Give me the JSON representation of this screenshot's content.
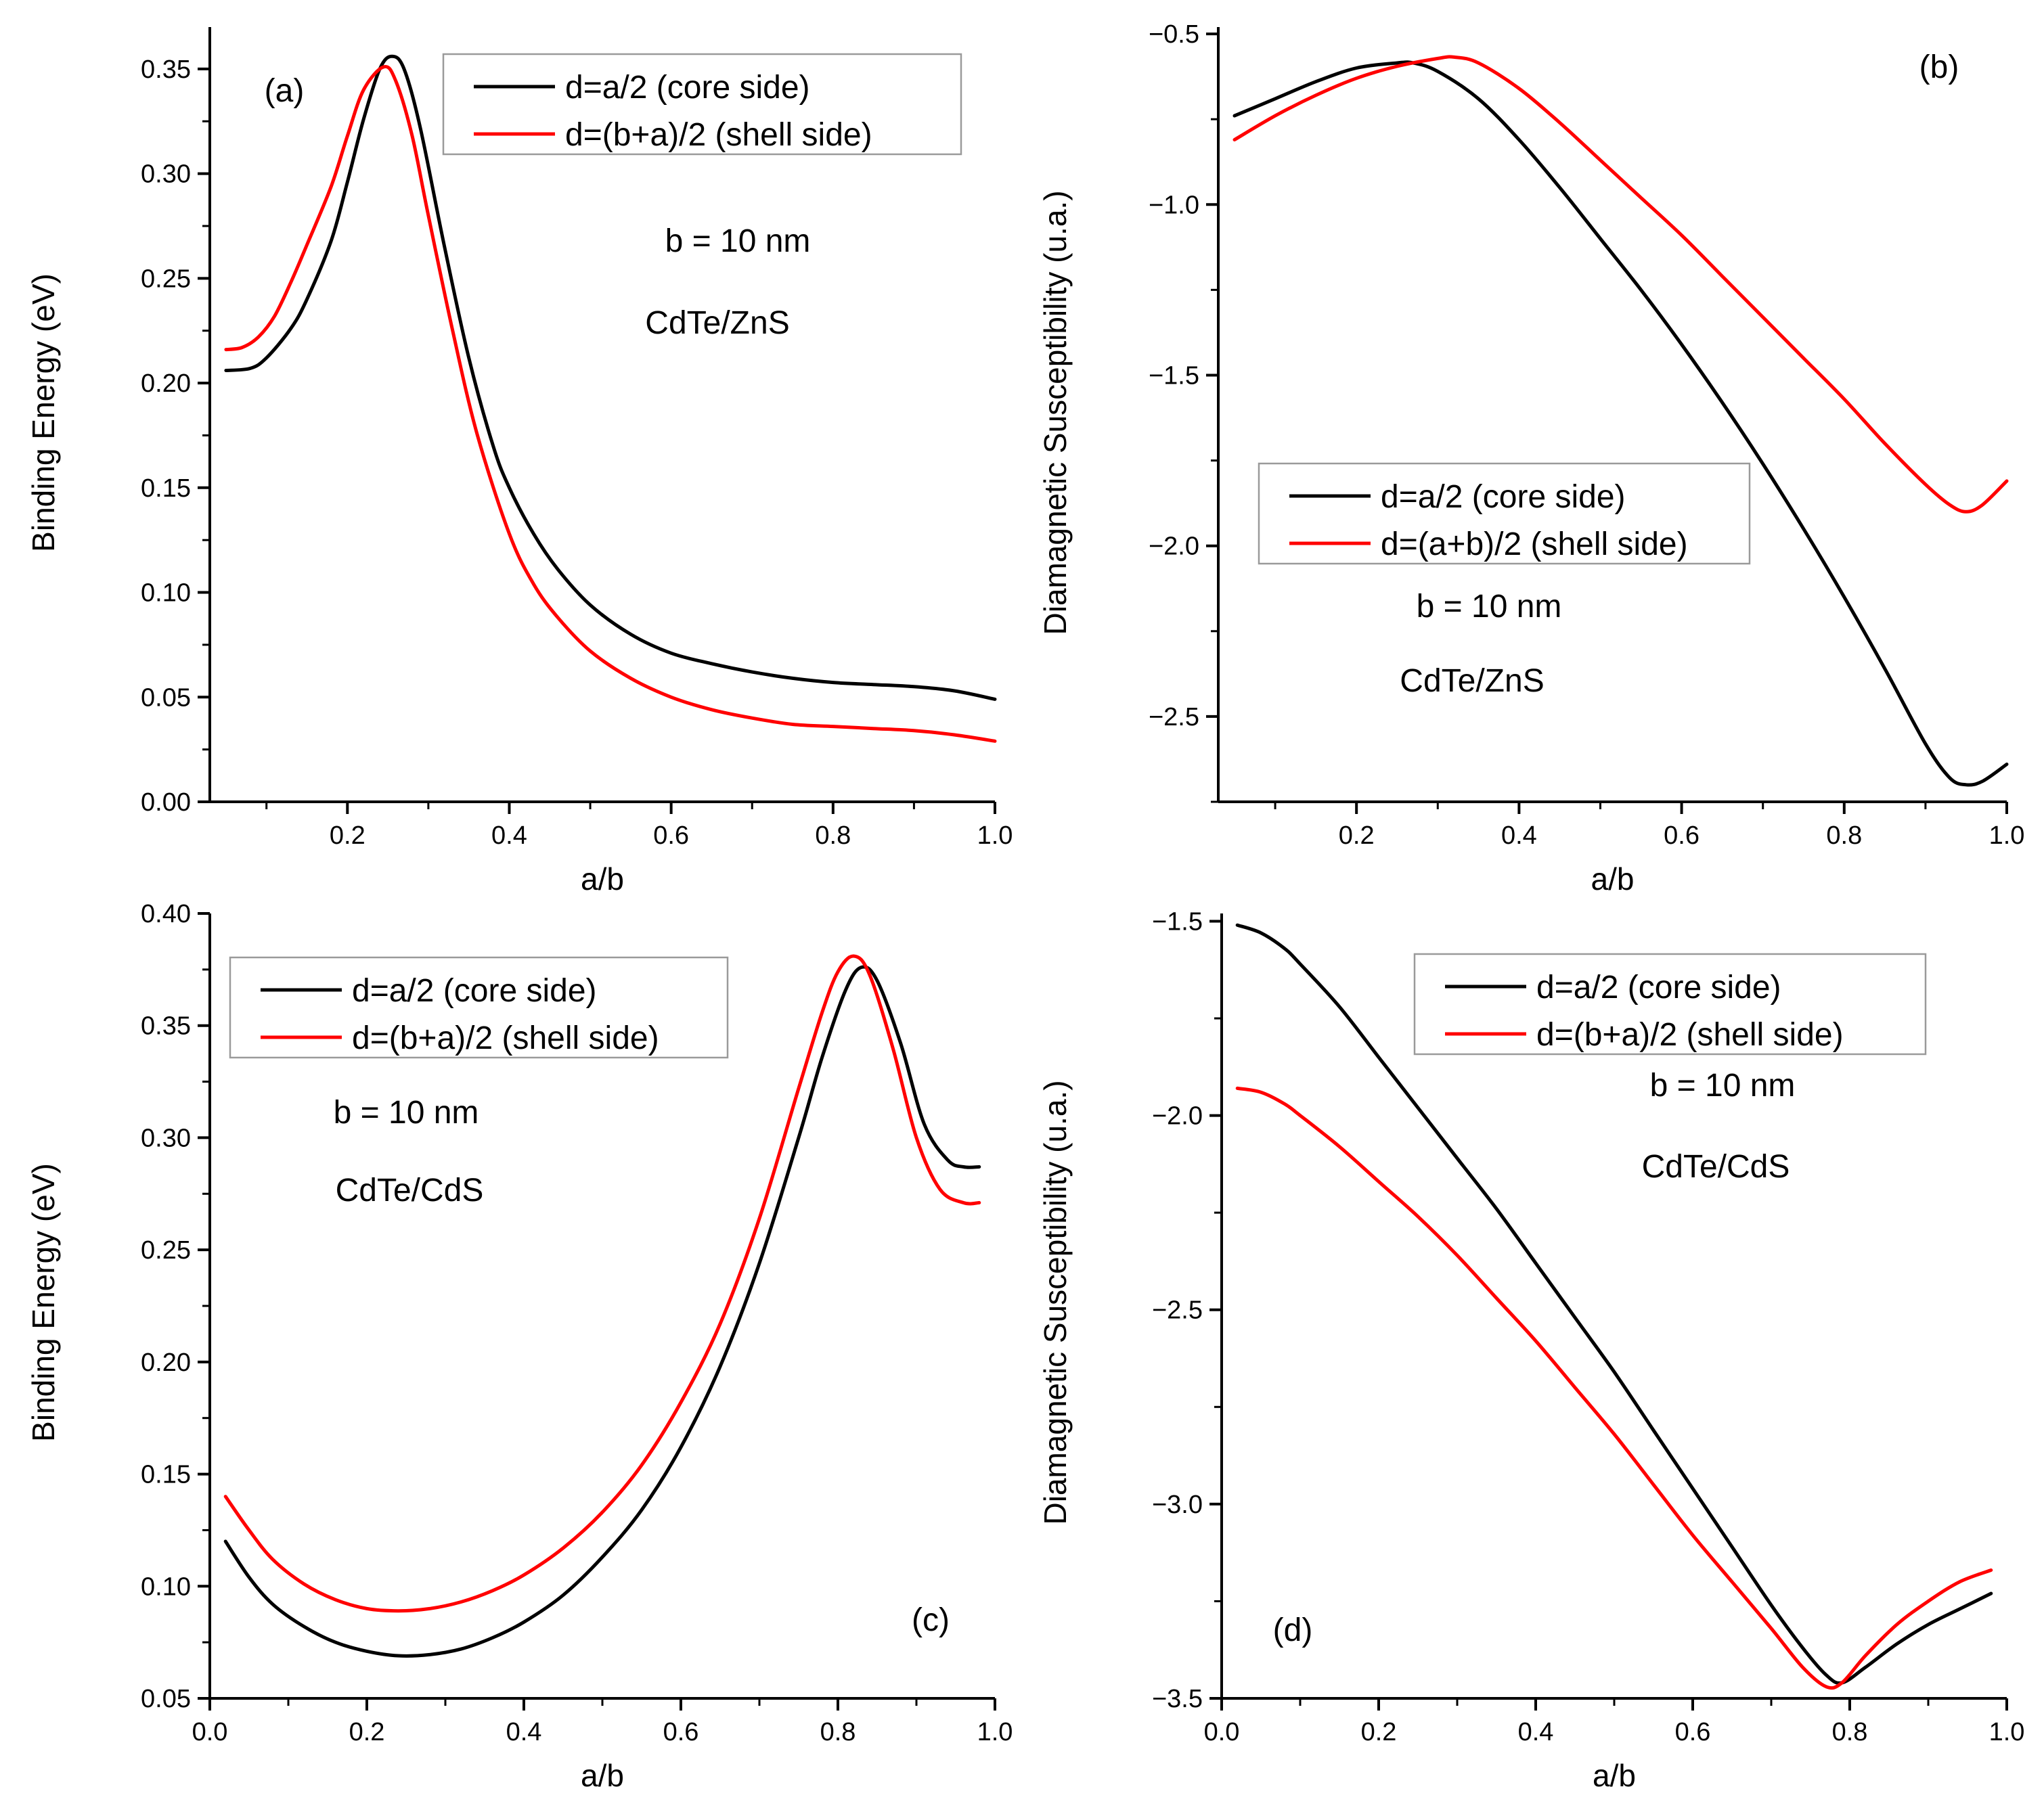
{
  "colors": {
    "core": "#000000",
    "shell": "#ff0000"
  },
  "chart_data": [
    {
      "id": "a",
      "type": "line",
      "label": "(a)",
      "xlabel": "a/b",
      "ylabel": "Binding Energy (eV)",
      "xlim": [
        0.03,
        1.0
      ],
      "ylim": [
        0.0,
        0.37
      ],
      "xticks": [
        0.2,
        0.4,
        0.6,
        0.8,
        1.0
      ],
      "xtick_labels": [
        "0.2",
        "0.4",
        "0.6",
        "0.8",
        "1.0"
      ],
      "yticks": [
        0.0,
        0.05,
        0.1,
        0.15,
        0.2,
        0.25,
        0.3,
        0.35
      ],
      "ytick_labels": [
        "0.00",
        "0.05",
        "0.10",
        "0.15",
        "0.20",
        "0.25",
        "0.30",
        "0.35"
      ],
      "annotations": [
        "b = 10 nm",
        "CdTe/ZnS"
      ],
      "legend": [
        "d=a/2 (core side)",
        "d=(b+a)/2 (shell side)"
      ],
      "series": [
        {
          "name": "d=a/2 (core side)",
          "color": "#000000",
          "x": [
            0.05,
            0.08,
            0.1,
            0.13,
            0.15,
            0.18,
            0.2,
            0.22,
            0.24,
            0.255,
            0.27,
            0.29,
            0.32,
            0.35,
            0.38,
            0.4,
            0.43,
            0.46,
            0.5,
            0.55,
            0.6,
            0.65,
            0.7,
            0.75,
            0.8,
            0.85,
            0.9,
            0.95,
            1.0
          ],
          "y": [
            0.206,
            0.207,
            0.212,
            0.226,
            0.24,
            0.268,
            0.296,
            0.326,
            0.35,
            0.356,
            0.35,
            0.322,
            0.265,
            0.212,
            0.17,
            0.15,
            0.128,
            0.111,
            0.094,
            0.08,
            0.071,
            0.066,
            0.062,
            0.059,
            0.057,
            0.056,
            0.055,
            0.053,
            0.049
          ]
        },
        {
          "name": "d=(b+a)/2 (shell side)",
          "color": "#ff0000",
          "x": [
            0.05,
            0.07,
            0.09,
            0.11,
            0.13,
            0.15,
            0.18,
            0.2,
            0.22,
            0.245,
            0.26,
            0.28,
            0.3,
            0.33,
            0.36,
            0.4,
            0.43,
            0.46,
            0.5,
            0.55,
            0.6,
            0.65,
            0.7,
            0.75,
            0.8,
            0.85,
            0.9,
            0.95,
            1.0
          ],
          "y": [
            0.216,
            0.217,
            0.222,
            0.232,
            0.248,
            0.266,
            0.294,
            0.318,
            0.34,
            0.351,
            0.344,
            0.318,
            0.28,
            0.225,
            0.176,
            0.128,
            0.104,
            0.088,
            0.072,
            0.059,
            0.05,
            0.044,
            0.04,
            0.037,
            0.036,
            0.035,
            0.034,
            0.032,
            0.029
          ]
        }
      ]
    },
    {
      "id": "b",
      "type": "line",
      "label": "(b)",
      "xlabel": "a/b",
      "ylabel": "Diamagnetic Susceptibility (u.a.)",
      "xlim": [
        0.03,
        1.0
      ],
      "ylim": [
        -2.75,
        -0.48
      ],
      "xticks": [
        0.2,
        0.4,
        0.6,
        0.8,
        1.0
      ],
      "xtick_labels": [
        "0.2",
        "0.4",
        "0.6",
        "0.8",
        "1.0"
      ],
      "yticks": [
        -2.5,
        -2.0,
        -1.5,
        -1.0,
        -0.5
      ],
      "ytick_labels": [
        "−2.5",
        "−2.0",
        "−1.5",
        "−1.0",
        "−0.5"
      ],
      "annotations": [
        "b = 10 nm",
        "CdTe/ZnS"
      ],
      "legend": [
        "d=a/2 (core side)",
        "d=(a+b)/2 (shell side)"
      ],
      "series": [
        {
          "name": "d=a/2 (core side)",
          "color": "#000000",
          "x": [
            0.05,
            0.1,
            0.15,
            0.2,
            0.25,
            0.27,
            0.3,
            0.35,
            0.4,
            0.45,
            0.5,
            0.55,
            0.6,
            0.65,
            0.7,
            0.75,
            0.8,
            0.85,
            0.9,
            0.93,
            0.95,
            0.97,
            1.0
          ],
          "y": [
            -0.74,
            -0.69,
            -0.64,
            -0.6,
            -0.585,
            -0.585,
            -0.61,
            -0.69,
            -0.81,
            -0.95,
            -1.1,
            -1.25,
            -1.41,
            -1.58,
            -1.76,
            -1.95,
            -2.15,
            -2.36,
            -2.58,
            -2.68,
            -2.7,
            -2.69,
            -2.64
          ]
        },
        {
          "name": "d=(a+b)/2 (shell side)",
          "color": "#ff0000",
          "x": [
            0.05,
            0.1,
            0.15,
            0.2,
            0.25,
            0.3,
            0.32,
            0.35,
            0.4,
            0.45,
            0.5,
            0.55,
            0.6,
            0.65,
            0.7,
            0.75,
            0.8,
            0.85,
            0.9,
            0.93,
            0.95,
            0.97,
            1.0
          ],
          "y": [
            -0.81,
            -0.74,
            -0.68,
            -0.63,
            -0.595,
            -0.572,
            -0.568,
            -0.585,
            -0.66,
            -0.76,
            -0.87,
            -0.98,
            -1.09,
            -1.21,
            -1.33,
            -1.45,
            -1.57,
            -1.7,
            -1.82,
            -1.88,
            -1.9,
            -1.88,
            -1.81
          ]
        }
      ]
    },
    {
      "id": "c",
      "type": "line",
      "label": "(c)",
      "xlabel": "a/b",
      "ylabel": "Binding Energy (eV)",
      "xlim": [
        0.0,
        1.0
      ],
      "ylim": [
        0.05,
        0.4
      ],
      "xticks": [
        0.0,
        0.2,
        0.4,
        0.6,
        0.8,
        1.0
      ],
      "xtick_labels": [
        "0.0",
        "0.2",
        "0.4",
        "0.6",
        "0.8",
        "1.0"
      ],
      "yticks": [
        0.05,
        0.1,
        0.15,
        0.2,
        0.25,
        0.3,
        0.35,
        0.4
      ],
      "ytick_labels": [
        "0.05",
        "0.10",
        "0.15",
        "0.20",
        "0.25",
        "0.30",
        "0.35",
        "0.40"
      ],
      "annotations": [
        "b = 10 nm",
        "CdTe/CdS"
      ],
      "legend": [
        "d=a/2 (core side)",
        "d=(b+a)/2 (shell side)"
      ],
      "series": [
        {
          "name": "d=a/2 (core side)",
          "color": "#000000",
          "x": [
            0.02,
            0.05,
            0.08,
            0.12,
            0.16,
            0.2,
            0.24,
            0.28,
            0.32,
            0.36,
            0.4,
            0.45,
            0.5,
            0.55,
            0.6,
            0.65,
            0.7,
            0.75,
            0.78,
            0.81,
            0.83,
            0.85,
            0.88,
            0.91,
            0.94,
            0.96,
            0.98
          ],
          "y": [
            0.12,
            0.104,
            0.092,
            0.082,
            0.075,
            0.071,
            0.069,
            0.0695,
            0.072,
            0.077,
            0.084,
            0.096,
            0.113,
            0.134,
            0.162,
            0.198,
            0.244,
            0.3,
            0.336,
            0.366,
            0.376,
            0.37,
            0.342,
            0.306,
            0.29,
            0.287,
            0.287
          ]
        },
        {
          "name": "d=(b+a)/2 (shell side)",
          "color": "#ff0000",
          "x": [
            0.02,
            0.05,
            0.08,
            0.12,
            0.16,
            0.2,
            0.24,
            0.28,
            0.32,
            0.36,
            0.4,
            0.45,
            0.5,
            0.55,
            0.6,
            0.65,
            0.7,
            0.75,
            0.78,
            0.8,
            0.82,
            0.84,
            0.87,
            0.9,
            0.93,
            0.96,
            0.98
          ],
          "y": [
            0.14,
            0.125,
            0.112,
            0.101,
            0.094,
            0.09,
            0.089,
            0.09,
            0.093,
            0.098,
            0.105,
            0.117,
            0.133,
            0.154,
            0.182,
            0.217,
            0.264,
            0.322,
            0.356,
            0.374,
            0.381,
            0.373,
            0.34,
            0.3,
            0.277,
            0.271,
            0.271
          ]
        }
      ]
    },
    {
      "id": "d",
      "type": "line",
      "label": "(d)",
      "xlabel": "a/b",
      "ylabel": "Diamagnetic Susceptibility (u.a.)",
      "xlim": [
        0.0,
        1.0
      ],
      "ylim": [
        -3.5,
        -1.48
      ],
      "xticks": [
        0.0,
        0.2,
        0.4,
        0.6,
        0.8,
        1.0
      ],
      "xtick_labels": [
        "0.0",
        "0.2",
        "0.4",
        "0.6",
        "0.8",
        "1.0"
      ],
      "yticks": [
        -3.5,
        -3.0,
        -2.5,
        -2.0,
        -1.5
      ],
      "ytick_labels": [
        "−3.5",
        "−3.0",
        "−2.5",
        "−2.0",
        "−1.5"
      ],
      "annotations": [
        "b = 10 nm",
        "CdTe/CdS"
      ],
      "legend": [
        "d=a/2 (core side)",
        "d=(b+a)/2 (shell side)"
      ],
      "series": [
        {
          "name": "d=a/2 (core side)",
          "color": "#000000",
          "x": [
            0.02,
            0.05,
            0.08,
            0.1,
            0.15,
            0.2,
            0.25,
            0.3,
            0.35,
            0.4,
            0.45,
            0.5,
            0.55,
            0.6,
            0.65,
            0.7,
            0.74,
            0.77,
            0.79,
            0.82,
            0.86,
            0.9,
            0.94,
            0.98
          ],
          "y": [
            -1.51,
            -1.53,
            -1.57,
            -1.61,
            -1.72,
            -1.85,
            -1.98,
            -2.11,
            -2.24,
            -2.38,
            -2.52,
            -2.66,
            -2.81,
            -2.96,
            -3.11,
            -3.26,
            -3.37,
            -3.44,
            -3.46,
            -3.42,
            -3.36,
            -3.31,
            -3.27,
            -3.23
          ]
        },
        {
          "name": "d=(b+a)/2 (shell side)",
          "color": "#ff0000",
          "x": [
            0.02,
            0.05,
            0.08,
            0.1,
            0.15,
            0.2,
            0.25,
            0.3,
            0.35,
            0.4,
            0.45,
            0.5,
            0.55,
            0.6,
            0.65,
            0.7,
            0.74,
            0.77,
            0.79,
            0.82,
            0.86,
            0.9,
            0.94,
            0.98
          ],
          "y": [
            -1.93,
            -1.94,
            -1.97,
            -2.0,
            -2.08,
            -2.17,
            -2.26,
            -2.36,
            -2.47,
            -2.58,
            -2.7,
            -2.82,
            -2.95,
            -3.08,
            -3.2,
            -3.32,
            -3.42,
            -3.47,
            -3.46,
            -3.39,
            -3.31,
            -3.25,
            -3.2,
            -3.17
          ]
        }
      ]
    }
  ]
}
